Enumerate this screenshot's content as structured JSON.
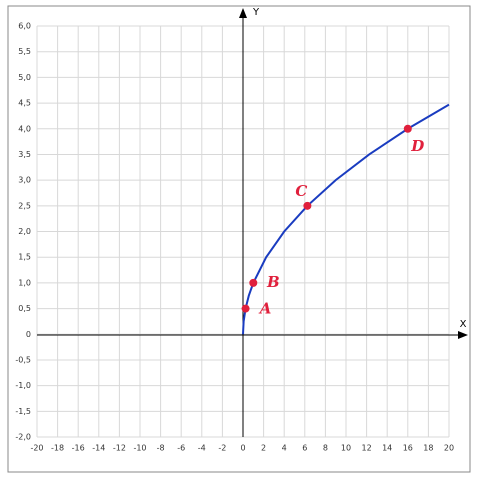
{
  "chart_data": {
    "type": "line",
    "x_label": "X",
    "y_label": "Y",
    "xlim": [
      -20,
      20
    ],
    "ylim": [
      -2,
      6
    ],
    "xticks": [
      -20,
      -18,
      -16,
      -14,
      -12,
      -10,
      -8,
      -6,
      -4,
      -2,
      0,
      2,
      4,
      6,
      8,
      10,
      12,
      14,
      16,
      18,
      20
    ],
    "yticks": [
      {
        "value": -2,
        "label": "-2,0"
      },
      {
        "value": -1.5,
        "label": "-1,5"
      },
      {
        "value": -1,
        "label": "-1,0"
      },
      {
        "value": -0.5,
        "label": "-0,5"
      },
      0,
      {
        "value": 0.5,
        "label": "0,5"
      },
      {
        "value": 1,
        "label": "1,0"
      },
      {
        "value": 1.5,
        "label": "1,5"
      },
      {
        "value": 2,
        "label": "2,0"
      },
      {
        "value": 2.5,
        "label": "2,5"
      },
      {
        "value": 3,
        "label": "3,0"
      },
      {
        "value": 3.5,
        "label": "3,5"
      },
      {
        "value": 4,
        "label": "4,0"
      },
      {
        "value": 4.5,
        "label": "4,5"
      },
      {
        "value": 5,
        "label": "5,0"
      },
      {
        "value": 5.5,
        "label": "5,5"
      },
      {
        "value": 6,
        "label": "6,0"
      }
    ],
    "grid": true,
    "series": [
      {
        "color": "#1a3cc0",
        "x": [
          0,
          0.0625,
          0.25,
          0.5625,
          1,
          2.25,
          4,
          6.25,
          9,
          12.25,
          16,
          20
        ],
        "values": [
          0,
          0.25,
          0.5,
          0.75,
          1,
          1.5,
          2,
          2.5,
          3,
          3.5,
          4,
          4.47
        ]
      }
    ],
    "points": {
      "color": "#e0203c",
      "labels": [
        "A",
        "B",
        "C",
        "D"
      ],
      "x": [
        0.25,
        1,
        6.25,
        16
      ],
      "values": [
        0.5,
        1,
        2.5,
        4
      ]
    }
  }
}
